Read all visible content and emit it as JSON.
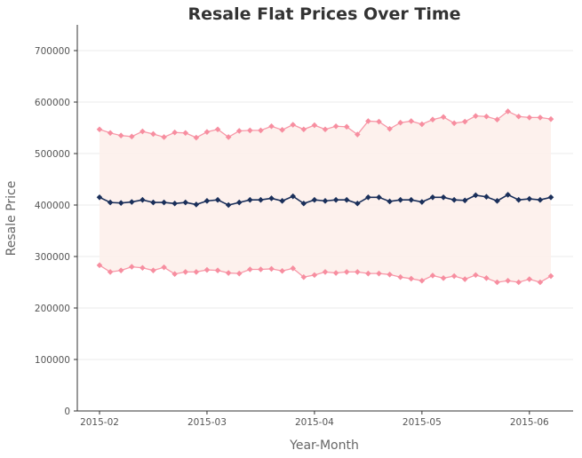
{
  "chart_data": {
    "type": "line",
    "title": "Resale Flat Prices Over Time",
    "xlabel": "Year-Month",
    "ylabel": "Resale Price",
    "ylim": [
      0,
      750000
    ],
    "yticks": [
      0,
      100000,
      200000,
      300000,
      400000,
      500000,
      600000,
      700000
    ],
    "xticks": [
      "2015-02",
      "2015-03",
      "2015-04",
      "2015-05",
      "2015-06"
    ],
    "grid": "horizontal",
    "colors": {
      "upper": "#f78ea0",
      "median": "#1a2f5a",
      "lower": "#f78ea0",
      "band": "#fdeeea"
    },
    "series": [
      {
        "key": "upper",
        "values": [
          547000,
          540000,
          535000,
          533000,
          543000,
          538000,
          532000,
          541000,
          540000,
          531000,
          542000,
          547000,
          532000,
          544000,
          545000,
          545000,
          553000,
          546000,
          556000,
          547000,
          555000,
          547000,
          553000,
          552000,
          537000,
          563000,
          562000,
          548000,
          560000,
          563000,
          557000,
          566000,
          571000,
          559000,
          562000,
          573000,
          572000,
          566000,
          582000,
          572000,
          570000,
          570000,
          567000
        ]
      },
      {
        "key": "median",
        "values": [
          415000,
          405000,
          404000,
          406000,
          410000,
          405000,
          405000,
          403000,
          405000,
          401000,
          408000,
          410000,
          400000,
          405000,
          410000,
          410000,
          413000,
          408000,
          417000,
          403000,
          410000,
          408000,
          410000,
          410000,
          403000,
          415000,
          415000,
          407000,
          410000,
          410000,
          406000,
          415000,
          415000,
          410000,
          409000,
          419000,
          416000,
          408000,
          420000,
          410000,
          412000,
          410000,
          415000
        ]
      },
      {
        "key": "lower",
        "values": [
          283000,
          270000,
          273000,
          280000,
          278000,
          273000,
          279000,
          266000,
          270000,
          270000,
          274000,
          273000,
          268000,
          267000,
          275000,
          275000,
          276000,
          272000,
          277000,
          260000,
          264000,
          270000,
          268000,
          270000,
          270000,
          267000,
          267000,
          265000,
          260000,
          257000,
          253000,
          263000,
          258000,
          262000,
          256000,
          264000,
          258000,
          250000,
          253000,
          250000,
          256000,
          250000,
          262000
        ]
      }
    ]
  }
}
